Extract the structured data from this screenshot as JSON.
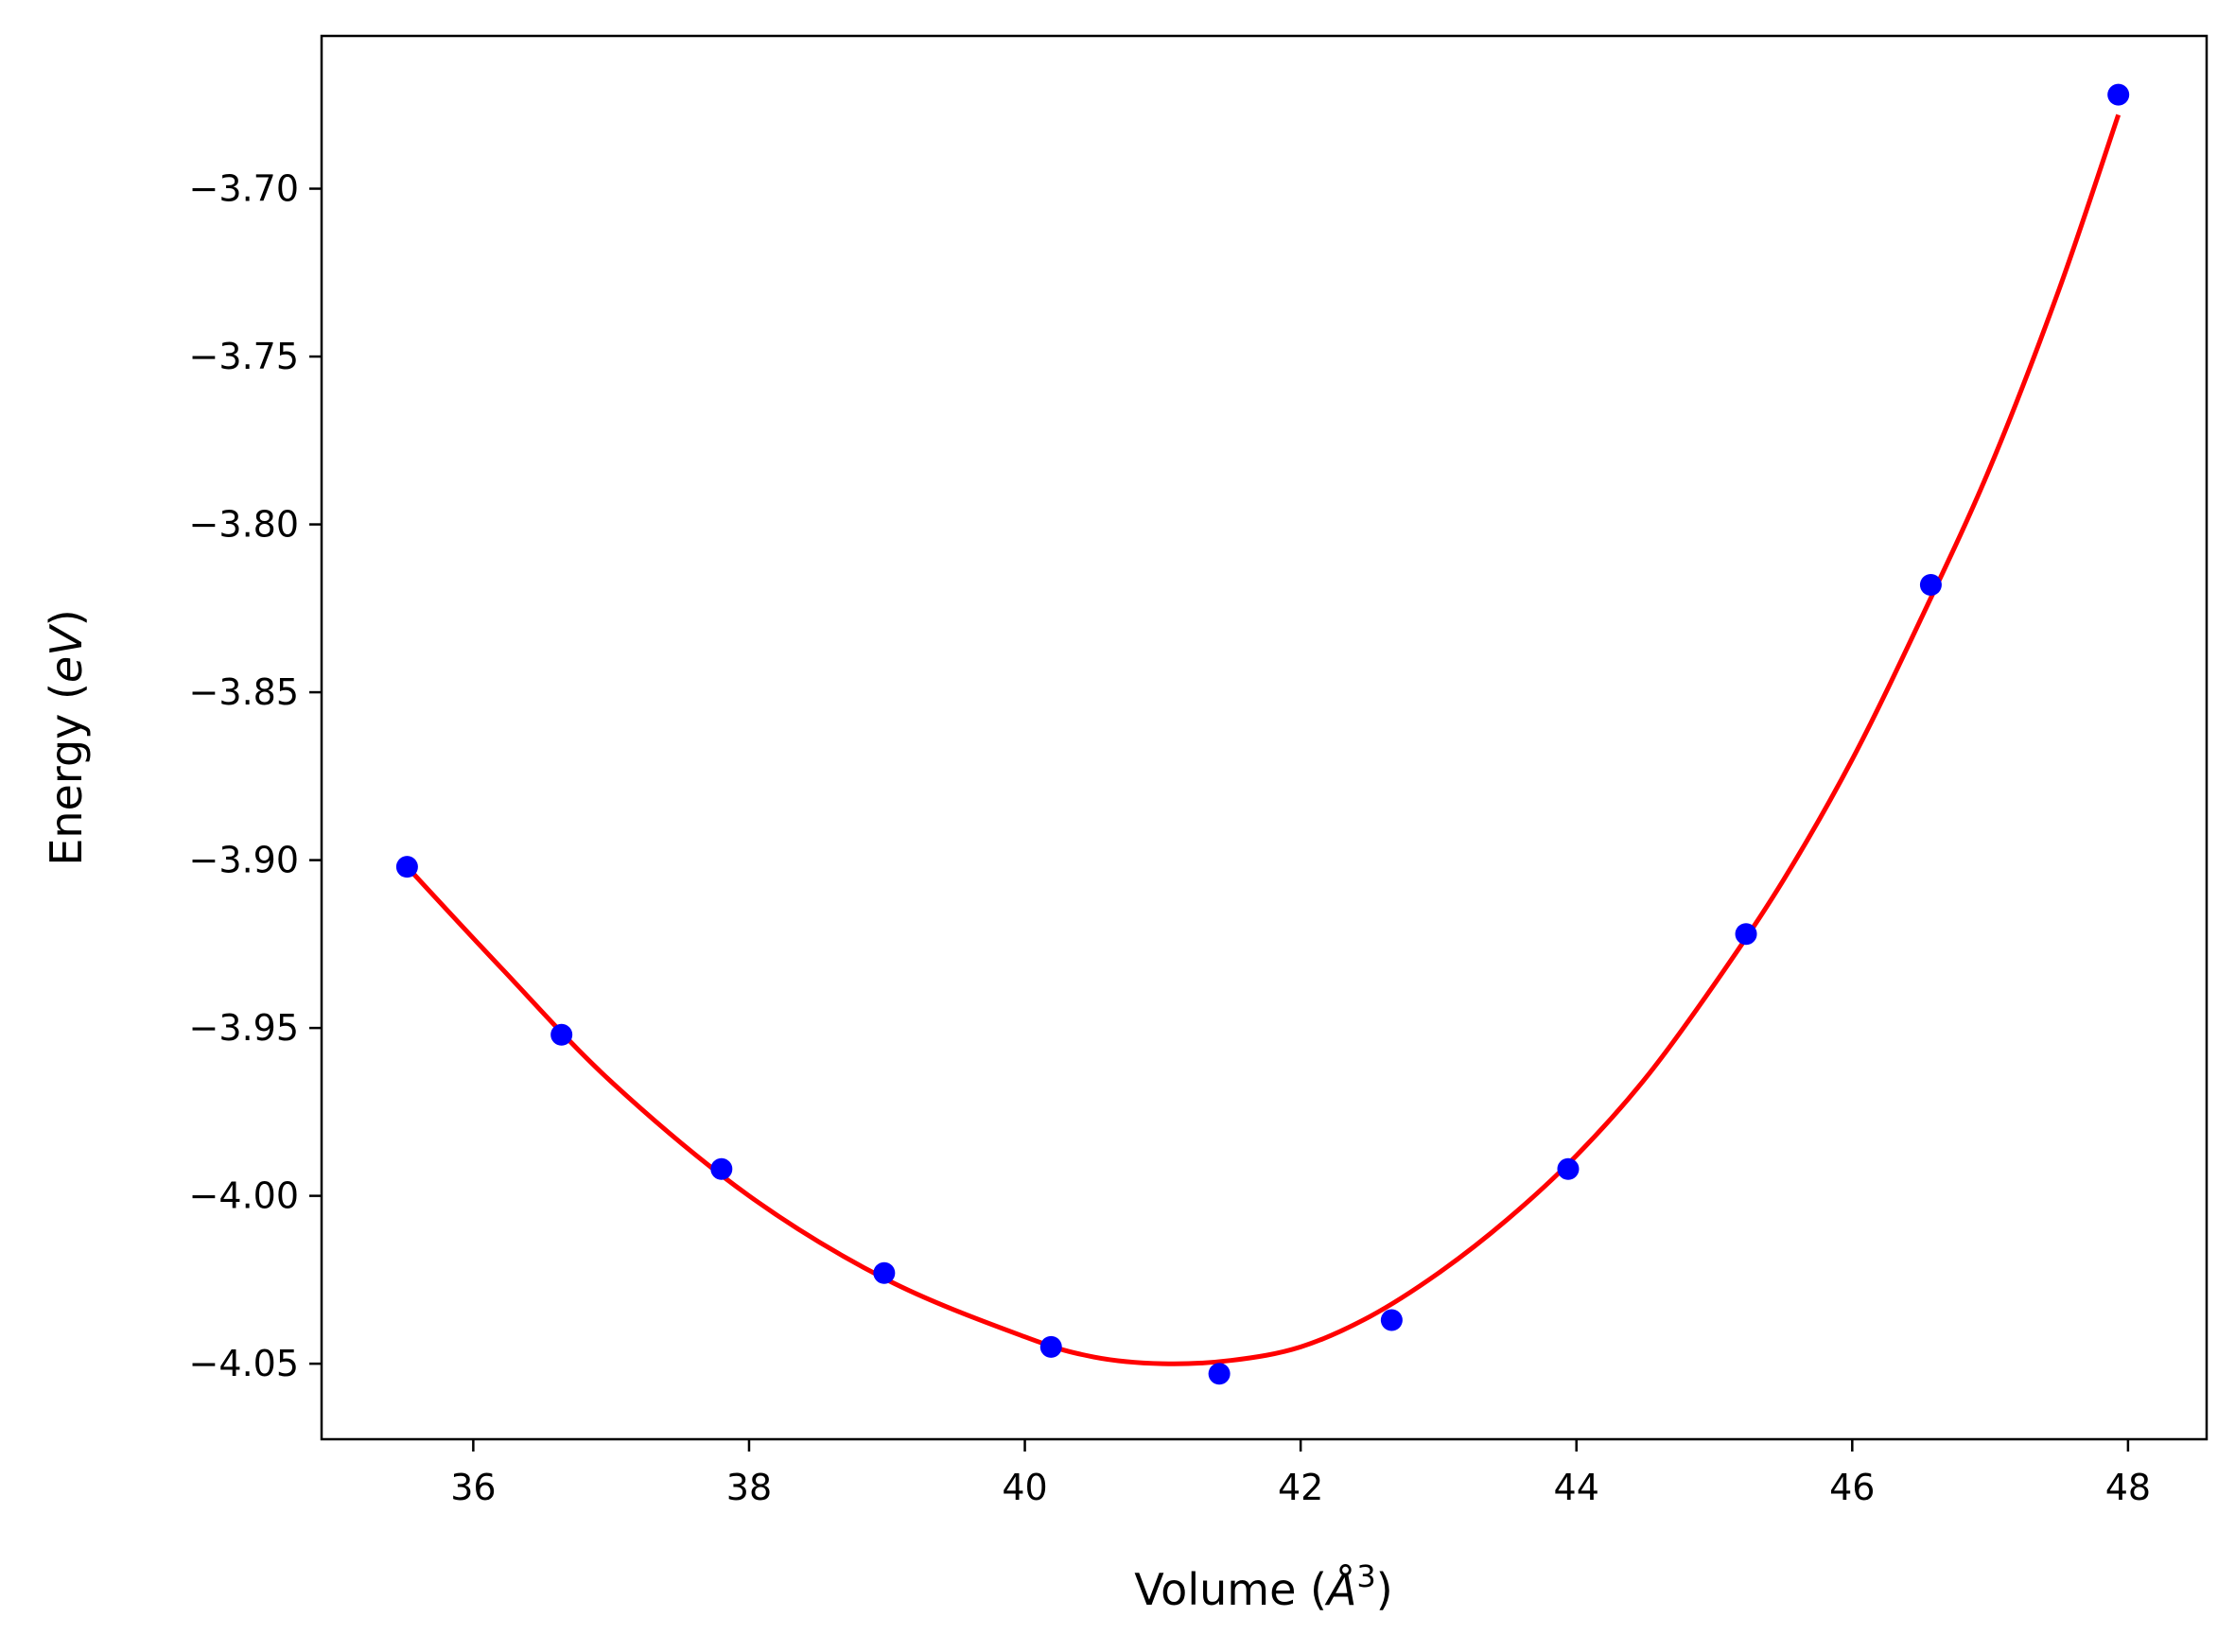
{
  "chart_data": {
    "type": "scatter",
    "title": "",
    "xlabel": "Volume (",
    "xlabel_symbol": "Å",
    "xlabel_exp": "3",
    "xlabel_close": ")",
    "ylabel": "Energy (",
    "ylabel_symbol": "eV",
    "ylabel_close": ")",
    "xlim": [
      34.9,
      48.57
    ],
    "ylim": [
      -4.0725,
      -3.6545
    ],
    "xticks": [
      36,
      38,
      40,
      42,
      44,
      46,
      48
    ],
    "xtick_labels": [
      "36",
      "38",
      "40",
      "42",
      "44",
      "46",
      "48"
    ],
    "yticks": [
      -3.7,
      -3.75,
      -3.8,
      -3.85,
      -3.9,
      -3.95,
      -4.0,
      -4.05
    ],
    "ytick_labels": [
      "−3.70",
      "−3.75",
      "−3.80",
      "−3.85",
      "−3.90",
      "−3.95",
      "−4.00",
      "−4.05"
    ],
    "grid": false,
    "series": [
      {
        "kind": "points",
        "color": "#0000ff",
        "x": [
          35.52,
          36.64,
          37.8,
          38.98,
          40.19,
          41.41,
          42.66,
          43.94,
          45.23,
          46.57,
          47.93
        ],
        "y": [
          -3.902,
          -3.952,
          -3.992,
          -4.023,
          -4.045,
          -4.053,
          -4.037,
          -3.992,
          -3.922,
          -3.818,
          -3.672
        ]
      },
      {
        "kind": "fit-curve",
        "color": "#ff0000",
        "x": [
          35.52,
          36.2,
          37.0,
          38.0,
          39.0,
          40.0,
          40.5,
          41.0,
          41.5,
          42.0,
          42.5,
          43.0,
          43.5,
          44.0,
          44.5,
          45.0,
          45.5,
          46.0,
          46.5,
          47.0,
          47.5,
          47.93
        ],
        "y": [
          -3.902,
          -3.932,
          -3.966,
          -4.0,
          -4.025,
          -4.042,
          -4.048,
          -4.05,
          -4.049,
          -4.045,
          -4.036,
          -4.023,
          -4.007,
          -3.988,
          -3.965,
          -3.937,
          -3.906,
          -3.87,
          -3.828,
          -3.783,
          -3.73,
          -3.678
        ]
      }
    ]
  }
}
